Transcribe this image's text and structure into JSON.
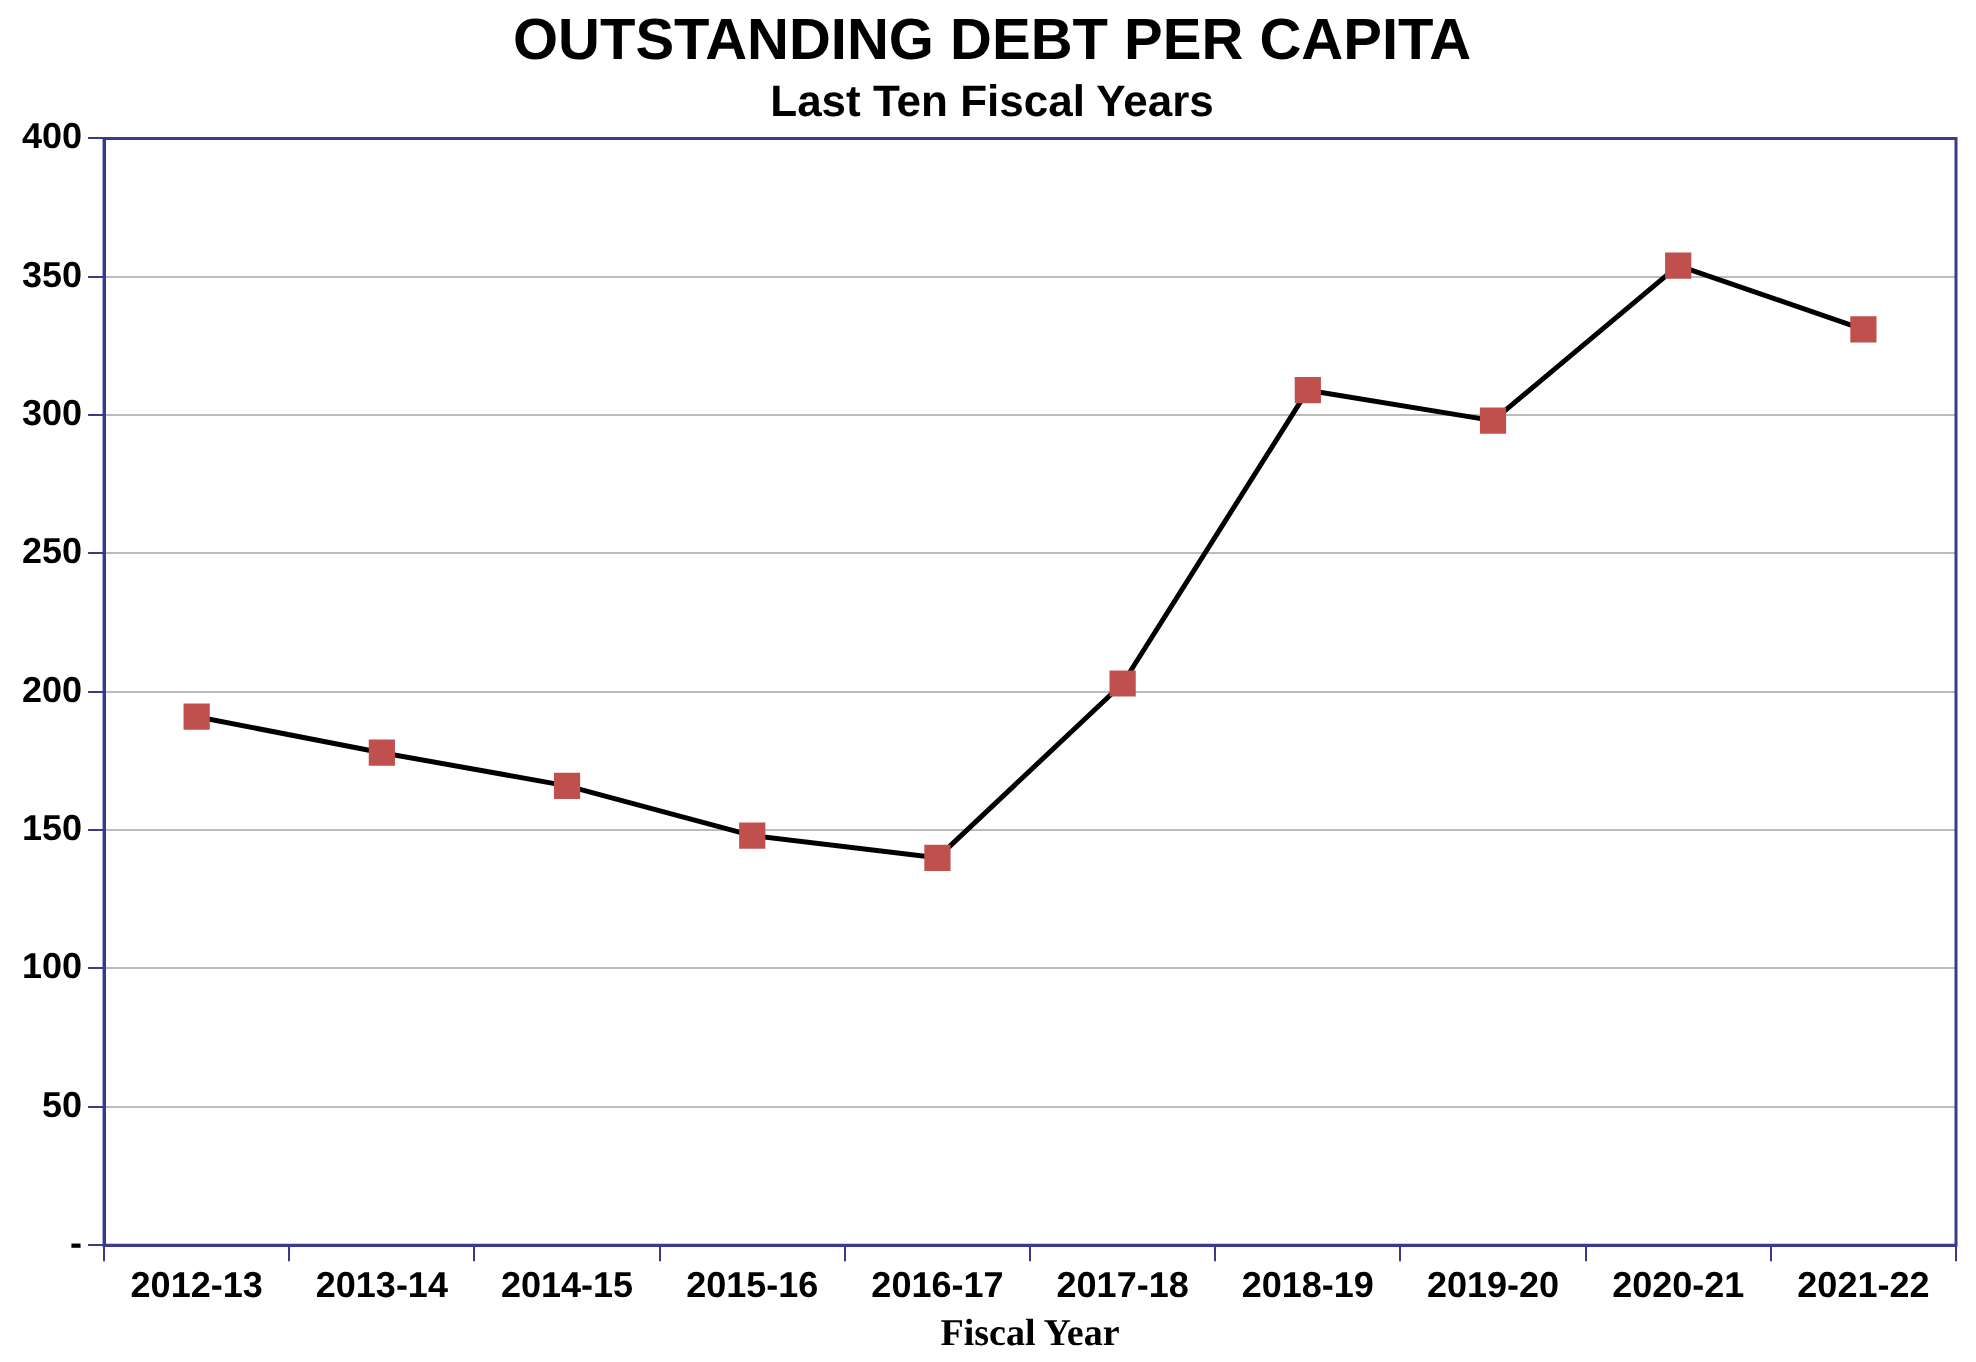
{
  "chart_data": {
    "type": "line",
    "title": "OUTSTANDING DEBT PER CAPITA",
    "subtitle": "Last Ten Fiscal Years",
    "xlabel": "Fiscal Year",
    "categories": [
      "2012-13",
      "2013-14",
      "2014-15",
      "2015-16",
      "2016-17",
      "2017-18",
      "2018-19",
      "2019-20",
      "2020-21",
      "2021-22"
    ],
    "series": [
      {
        "color": "#c0504d",
        "values": [
          191,
          178,
          166,
          148,
          140,
          203,
          309,
          298,
          354,
          331
        ]
      }
    ],
    "marker": "square",
    "line_style": "solid",
    "ylim": [
      0,
      400
    ],
    "yticks": [
      {
        "value": 0,
        "label": "-"
      },
      50,
      100,
      150,
      200,
      250,
      300,
      350,
      400
    ],
    "grid": "y",
    "legend": false
  }
}
